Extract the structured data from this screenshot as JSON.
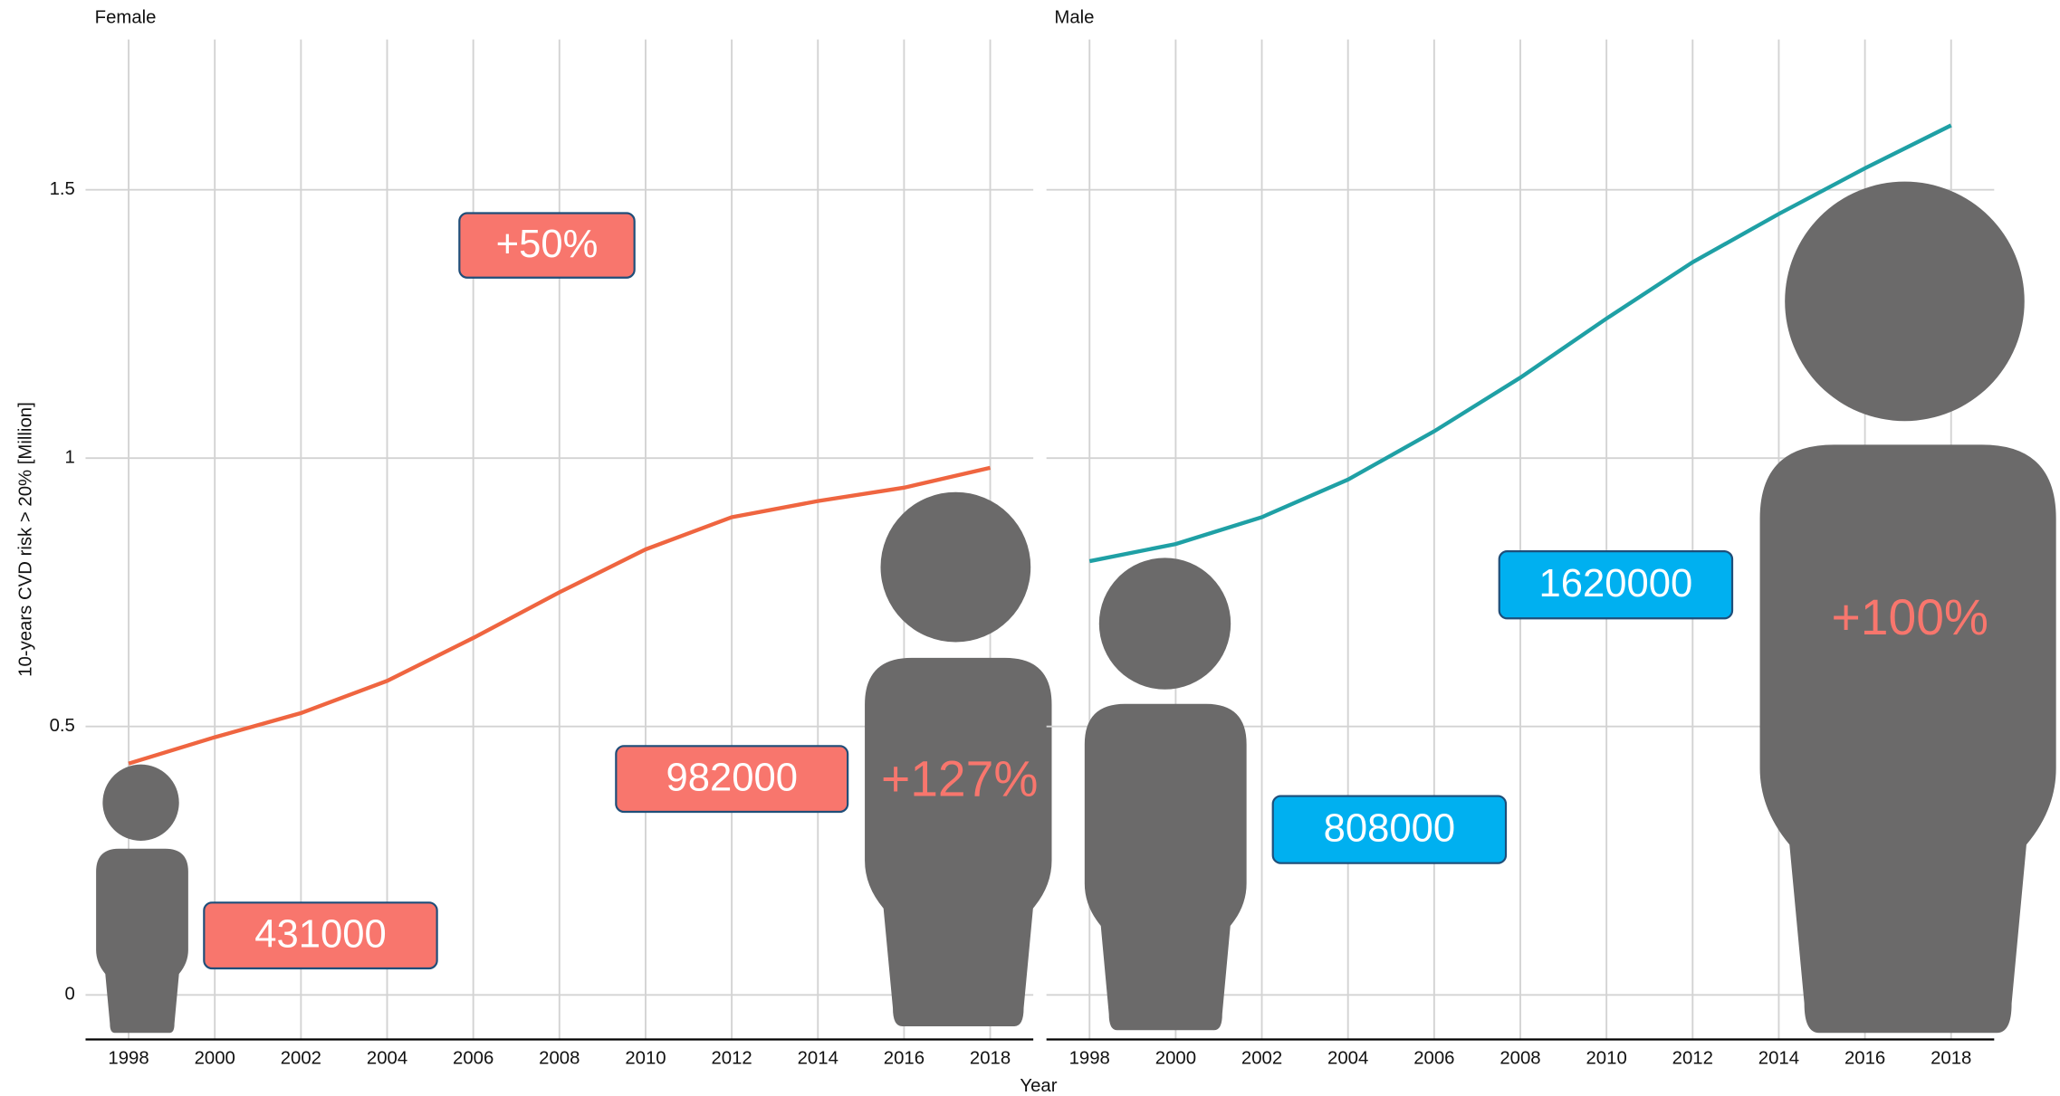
{
  "axis_labels": {
    "x": "Year",
    "y": "10-years CVD risk > 20% [Million]"
  },
  "chart_data": [
    {
      "type": "line",
      "title": "Female",
      "x": [
        1998,
        2000,
        2002,
        2004,
        2006,
        2008,
        2010,
        2012,
        2014,
        2016,
        2018
      ],
      "series": [
        {
          "name": "Female",
          "color": "#ef6540",
          "values": [
            0.431,
            0.48,
            0.525,
            0.585,
            0.665,
            0.75,
            0.83,
            0.89,
            0.92,
            0.945,
            0.982
          ]
        }
      ],
      "xlim": [
        1997,
        2019
      ],
      "ylim": [
        -0.083,
        1.78
      ],
      "xticks": [
        1998,
        2000,
        2002,
        2004,
        2006,
        2008,
        2010,
        2012,
        2014,
        2016,
        2018
      ],
      "yticks": [
        0,
        0.5,
        1,
        1.5
      ],
      "grid": true,
      "annotations": [
        {
          "text": "+50%",
          "color": "#f8766d",
          "box": true
        },
        {
          "text": "431000",
          "color": "#f8766d",
          "box": true
        },
        {
          "text": "982000",
          "color": "#f8766d",
          "box": true
        },
        {
          "text": "+127%",
          "color": "#f8766d",
          "box": false
        }
      ]
    },
    {
      "type": "line",
      "title": "Male",
      "x": [
        1998,
        2000,
        2002,
        2004,
        2006,
        2008,
        2010,
        2012,
        2014,
        2016,
        2018
      ],
      "series": [
        {
          "name": "Male",
          "color": "#1fa0a5",
          "values": [
            0.808,
            0.84,
            0.89,
            0.96,
            1.05,
            1.15,
            1.26,
            1.365,
            1.455,
            1.54,
            1.62
          ]
        }
      ],
      "xlim": [
        1997,
        2019
      ],
      "ylim": [
        -0.083,
        1.78
      ],
      "xticks": [
        1998,
        2000,
        2002,
        2004,
        2006,
        2008,
        2010,
        2012,
        2014,
        2016,
        2018
      ],
      "yticks": [
        0,
        0.5,
        1,
        1.5
      ],
      "grid": true,
      "annotations": [
        {
          "text": "808000",
          "color": "#00b0f0",
          "box": true
        },
        {
          "text": "1620000",
          "color": "#00b0f0",
          "box": true
        },
        {
          "text": "+100%",
          "color": "#f8766d",
          "box": false
        }
      ]
    }
  ]
}
